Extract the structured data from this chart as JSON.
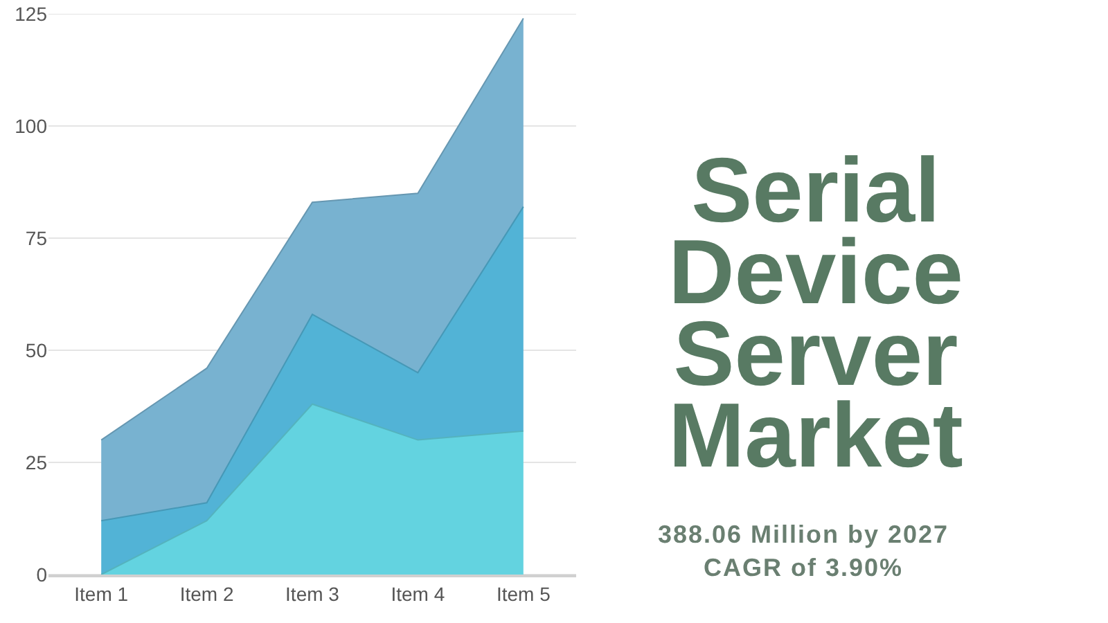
{
  "chart_data": {
    "type": "area",
    "stacked": true,
    "title": "Serial Device Server Market",
    "annotations": [
      "388.06 Million by 2027",
      "CAGR of 3.90%"
    ],
    "categories": [
      "Item 1",
      "Item 2",
      "Item 3",
      "Item 4",
      "Item 5"
    ],
    "series": [
      {
        "color": "#63d3e0",
        "values": [
          0,
          12,
          38,
          30,
          32
        ]
      },
      {
        "color": "#52b3d6",
        "values": [
          12,
          4,
          20,
          15,
          50
        ]
      },
      {
        "color": "#78b2d0",
        "values": [
          18,
          30,
          25,
          40,
          42
        ]
      }
    ],
    "ylim": [
      0,
      125
    ],
    "yticks": [
      0,
      25,
      50,
      75,
      100,
      125
    ],
    "grid": "y"
  }
}
